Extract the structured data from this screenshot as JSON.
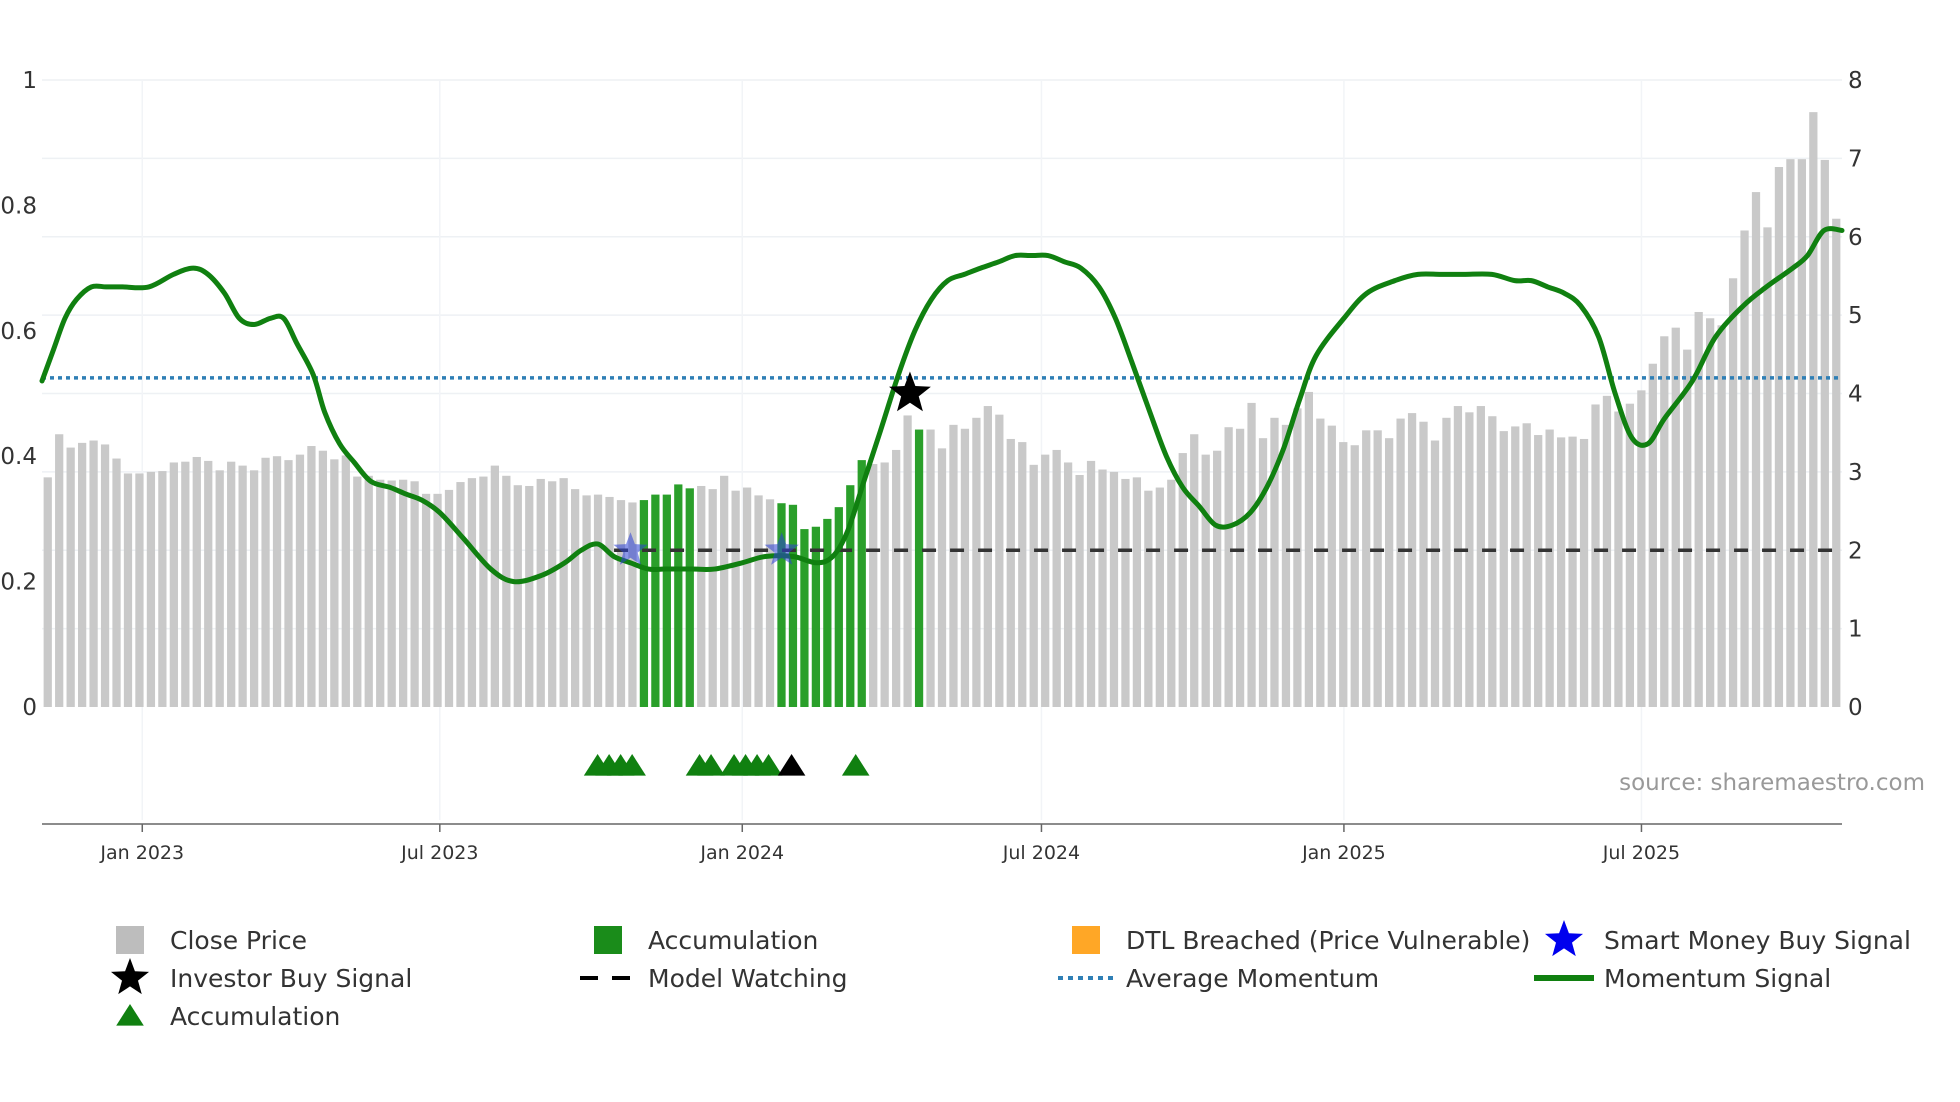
{
  "chart_data": {
    "type": "bar+line",
    "x_axis": {
      "ticks": [
        "Jan 2023",
        "Jul 2023",
        "Jan 2024",
        "Jul 2024",
        "Jan 2025",
        "Jul 2025"
      ],
      "start": "2022-11-01",
      "end": "2025-10-31"
    },
    "y_left": {
      "min": 0,
      "max": 1,
      "tick_labels": [
        "0",
        "0.2",
        "0.4",
        "0.6",
        "0.8",
        "1"
      ]
    },
    "y_right": {
      "min": 0,
      "max": 8,
      "tick_labels": [
        "0",
        "1",
        "2",
        "3",
        "4",
        "5",
        "6",
        "7",
        "8"
      ]
    },
    "series": [
      {
        "name": "Close Price",
        "axis": "right",
        "type": "bar",
        "values": [
          2.93,
          3.48,
          3.31,
          3.37,
          3.4,
          3.35,
          3.17,
          2.98,
          2.98,
          3.0,
          3.01,
          3.12,
          3.13,
          3.19,
          3.14,
          3.02,
          3.13,
          3.08,
          3.02,
          3.18,
          3.2,
          3.15,
          3.22,
          3.33,
          3.27,
          3.16,
          3.21,
          2.94,
          2.95,
          2.9,
          2.89,
          2.9,
          2.88,
          2.72,
          2.72,
          2.77,
          2.87,
          2.92,
          2.94,
          3.08,
          2.95,
          2.83,
          2.82,
          2.91,
          2.88,
          2.92,
          2.78,
          2.7,
          2.71,
          2.68,
          2.64,
          2.61,
          2.64,
          2.71,
          2.71,
          2.84,
          2.79,
          2.82,
          2.78,
          2.95,
          2.76,
          2.8,
          2.7,
          2.65,
          2.6,
          2.58,
          2.27,
          2.3,
          2.4,
          2.55,
          2.83,
          3.15,
          3.1,
          3.12,
          3.28,
          3.72,
          3.54,
          3.54,
          3.3,
          3.6,
          3.55,
          3.69,
          3.84,
          3.73,
          3.42,
          3.38,
          3.09,
          3.22,
          3.28,
          3.12,
          2.96,
          3.14,
          3.03,
          3.0,
          2.91,
          2.93,
          2.76,
          2.8,
          2.9,
          3.24,
          3.48,
          3.22,
          3.27,
          3.57,
          3.55,
          3.88,
          3.43,
          3.69,
          3.6,
          3.81,
          4.02,
          3.68,
          3.59,
          3.38,
          3.34,
          3.53,
          3.53,
          3.43,
          3.68,
          3.75,
          3.64,
          3.4,
          3.69,
          3.84,
          3.76,
          3.84,
          3.71,
          3.52,
          3.58,
          3.62,
          3.47,
          3.54,
          3.44,
          3.45,
          3.42,
          3.86,
          3.97,
          3.77,
          3.87,
          4.04,
          4.38,
          4.73,
          4.84,
          4.56,
          5.04,
          4.96,
          4.87,
          5.47,
          6.08,
          6.57,
          6.12,
          6.89,
          6.99,
          6.99,
          7.59,
          6.98,
          6.23
        ],
        "accumulation_bars": [
          52,
          53,
          54,
          55,
          56,
          64,
          65,
          66,
          67,
          68,
          69,
          70,
          71,
          76
        ]
      },
      {
        "name": "Momentum Signal",
        "axis": "left",
        "type": "line",
        "x": [
          "2022-11-01",
          "2022-11-08",
          "2022-11-15",
          "2022-11-22",
          "2022-12-01",
          "2022-12-10",
          "2022-12-20",
          "2023-01-05",
          "2023-01-20",
          "2023-02-01",
          "2023-02-10",
          "2023-02-20",
          "2023-03-01",
          "2023-03-10",
          "2023-03-20",
          "2023-03-28",
          "2023-04-05",
          "2023-04-15",
          "2023-04-22",
          "2023-05-01",
          "2023-05-10",
          "2023-05-20",
          "2023-06-01",
          "2023-06-10",
          "2023-06-20",
          "2023-07-01",
          "2023-07-15",
          "2023-08-01",
          "2023-08-15",
          "2023-09-01",
          "2023-09-15",
          "2023-09-25",
          "2023-10-05",
          "2023-10-15",
          "2023-10-25",
          "2023-11-05",
          "2023-11-15",
          "2023-12-01",
          "2023-12-15",
          "2024-01-01",
          "2024-01-15",
          "2024-02-01",
          "2024-02-15",
          "2024-02-25",
          "2024-03-05",
          "2024-03-15",
          "2024-03-25",
          "2024-04-05",
          "2024-04-15",
          "2024-04-25",
          "2024-05-05",
          "2024-05-15",
          "2024-05-25",
          "2024-06-05",
          "2024-06-15",
          "2024-06-25",
          "2024-07-05",
          "2024-07-15",
          "2024-07-25",
          "2024-08-05",
          "2024-08-15",
          "2024-08-25",
          "2024-09-05",
          "2024-09-15",
          "2024-09-25",
          "2024-10-05",
          "2024-10-15",
          "2024-10-25",
          "2024-11-05",
          "2024-11-15",
          "2024-11-25",
          "2024-12-05",
          "2024-12-15",
          "2025-01-01",
          "2025-01-15",
          "2025-02-01",
          "2025-02-15",
          "2025-03-01",
          "2025-03-15",
          "2025-04-01",
          "2025-04-15",
          "2025-04-25",
          "2025-05-05",
          "2025-05-15",
          "2025-05-25",
          "2025-06-05",
          "2025-06-15",
          "2025-06-25",
          "2025-07-05",
          "2025-07-15",
          "2025-08-01",
          "2025-08-15",
          "2025-09-01",
          "2025-09-15",
          "2025-10-01",
          "2025-10-10",
          "2025-10-20",
          "2025-10-31"
        ],
        "values": [
          0.52,
          0.57,
          0.62,
          0.65,
          0.67,
          0.67,
          0.67,
          0.67,
          0.69,
          0.7,
          0.69,
          0.66,
          0.62,
          0.61,
          0.62,
          0.62,
          0.58,
          0.53,
          0.47,
          0.42,
          0.39,
          0.36,
          0.35,
          0.34,
          0.33,
          0.31,
          0.27,
          0.22,
          0.2,
          0.21,
          0.23,
          0.25,
          0.26,
          0.24,
          0.23,
          0.22,
          0.22,
          0.22,
          0.22,
          0.23,
          0.24,
          0.24,
          0.23,
          0.24,
          0.28,
          0.36,
          0.44,
          0.53,
          0.6,
          0.65,
          0.68,
          0.69,
          0.7,
          0.71,
          0.72,
          0.72,
          0.72,
          0.71,
          0.7,
          0.67,
          0.62,
          0.55,
          0.47,
          0.4,
          0.35,
          0.32,
          0.29,
          0.29,
          0.31,
          0.35,
          0.41,
          0.49,
          0.56,
          0.62,
          0.66,
          0.68,
          0.69,
          0.69,
          0.69,
          0.69,
          0.68,
          0.68,
          0.67,
          0.66,
          0.64,
          0.59,
          0.5,
          0.43,
          0.42,
          0.46,
          0.52,
          0.59,
          0.64,
          0.67,
          0.7,
          0.72,
          0.76,
          0.76
        ]
      },
      {
        "name": "Average Momentum",
        "axis": "left",
        "type": "hline",
        "value": 0.525
      },
      {
        "name": "Model Watching",
        "axis": "left",
        "type": "dashed",
        "value": 0.25,
        "x_start": "2023-10-15",
        "x_end": "2025-10-31"
      }
    ],
    "markers": [
      {
        "name": "Smart Money Buy Signal",
        "x": "2023-10-25",
        "y": 0.25
      },
      {
        "name": "Smart Money Buy Signal",
        "x": "2024-01-25",
        "y": 0.25
      },
      {
        "name": "Investor Buy Signal",
        "x": "2024-04-12",
        "y": 0.5
      },
      {
        "name": "Accumulation",
        "x": [
          "2023-10-05",
          "2023-10-12",
          "2023-10-19",
          "2023-10-26",
          "2023-12-06",
          "2023-12-13",
          "2023-12-27",
          "2024-01-03",
          "2024-01-10",
          "2024-01-17"
        ],
        "color": "green"
      },
      {
        "name": "Accumulation",
        "x": [
          "2024-03-10"
        ],
        "color": "green"
      },
      {
        "name": "Model Watching",
        "x": [
          "2024-01-31"
        ],
        "color": "black"
      }
    ],
    "legend": [
      {
        "label": "Close Price",
        "symbol": "square",
        "color": "#bdbdbd"
      },
      {
        "label": "Accumulation",
        "symbol": "square",
        "color": "#1a8c1a"
      },
      {
        "label": "DTL Breached (Price Vulnerable)",
        "symbol": "square",
        "color": "#ffa726"
      },
      {
        "label": "Smart Money Buy Signal",
        "symbol": "star",
        "color": "#0000ee"
      },
      {
        "label": "Investor Buy Signal",
        "symbol": "star",
        "color": "#000000"
      },
      {
        "label": "Model Watching",
        "symbol": "dash",
        "color": "#000000"
      },
      {
        "label": "Average Momentum",
        "symbol": "dot",
        "color": "#2f7fb5"
      },
      {
        "label": "Momentum Signal",
        "symbol": "line",
        "color": "#108010"
      },
      {
        "label": "Accumulation",
        "symbol": "triangle",
        "color": "#108010"
      }
    ],
    "source": "source: sharemaestro.com"
  }
}
